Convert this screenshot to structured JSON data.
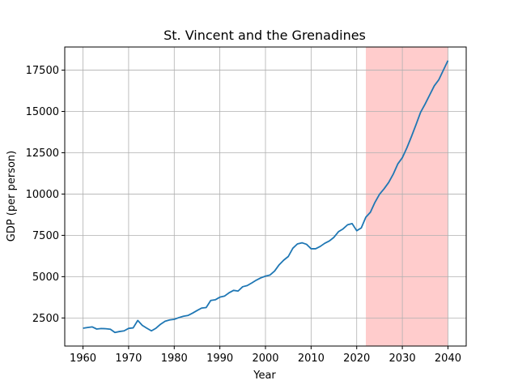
{
  "chart_data": {
    "type": "line",
    "title": "St. Vincent and the Grenadines",
    "xlabel": "Year",
    "ylabel": "GDP (per person)",
    "xlim": [
      1956,
      2044
    ],
    "ylim": [
      800,
      18900
    ],
    "x_ticks": [
      1960,
      1970,
      1980,
      1990,
      2000,
      2010,
      2020,
      2030,
      2040
    ],
    "y_ticks": [
      2500,
      5000,
      7500,
      10000,
      12500,
      15000,
      17500
    ],
    "y_tick_labels": [
      "2500",
      "5000",
      "7500",
      "10000",
      "12500",
      "15000",
      "17500"
    ],
    "grid": true,
    "highlight_span": {
      "x_start": 2022,
      "x_end": 2040,
      "color": "#ffcccc"
    },
    "series": [
      {
        "color": "#1f77b4",
        "x": [
          1960,
          1961,
          1962,
          1963,
          1964,
          1965,
          1966,
          1967,
          1968,
          1969,
          1970,
          1971,
          1972,
          1973,
          1974,
          1975,
          1976,
          1977,
          1978,
          1979,
          1980,
          1981,
          1982,
          1983,
          1984,
          1985,
          1986,
          1987,
          1988,
          1989,
          1990,
          1991,
          1992,
          1993,
          1994,
          1995,
          1996,
          1997,
          1998,
          1999,
          2000,
          2001,
          2002,
          2003,
          2004,
          2005,
          2006,
          2007,
          2008,
          2009,
          2010,
          2011,
          2012,
          2013,
          2014,
          2015,
          2016,
          2017,
          2018,
          2019,
          2020,
          2021,
          2022,
          2023,
          2024,
          2025,
          2026,
          2027,
          2028,
          2029,
          2030,
          2031,
          2032,
          2033,
          2034,
          2035,
          2036,
          2037,
          2038,
          2039,
          2040
        ],
        "y": [
          1880,
          1920,
          1960,
          1830,
          1860,
          1850,
          1820,
          1620,
          1680,
          1720,
          1870,
          1900,
          2350,
          2050,
          1880,
          1720,
          1880,
          2120,
          2300,
          2380,
          2420,
          2520,
          2600,
          2650,
          2790,
          2950,
          3100,
          3130,
          3560,
          3600,
          3760,
          3820,
          4020,
          4170,
          4130,
          4390,
          4460,
          4620,
          4790,
          4930,
          5030,
          5100,
          5340,
          5720,
          6000,
          6220,
          6720,
          6980,
          7050,
          6960,
          6690,
          6690,
          6830,
          7020,
          7160,
          7380,
          7720,
          7890,
          8140,
          8210,
          7780,
          7950,
          8600,
          8900,
          9500,
          9990,
          10320,
          10700,
          11200,
          11820,
          12200,
          12800,
          13480,
          14200,
          14950,
          15450,
          16000,
          16550,
          16920,
          17500,
          18080
        ]
      }
    ]
  }
}
